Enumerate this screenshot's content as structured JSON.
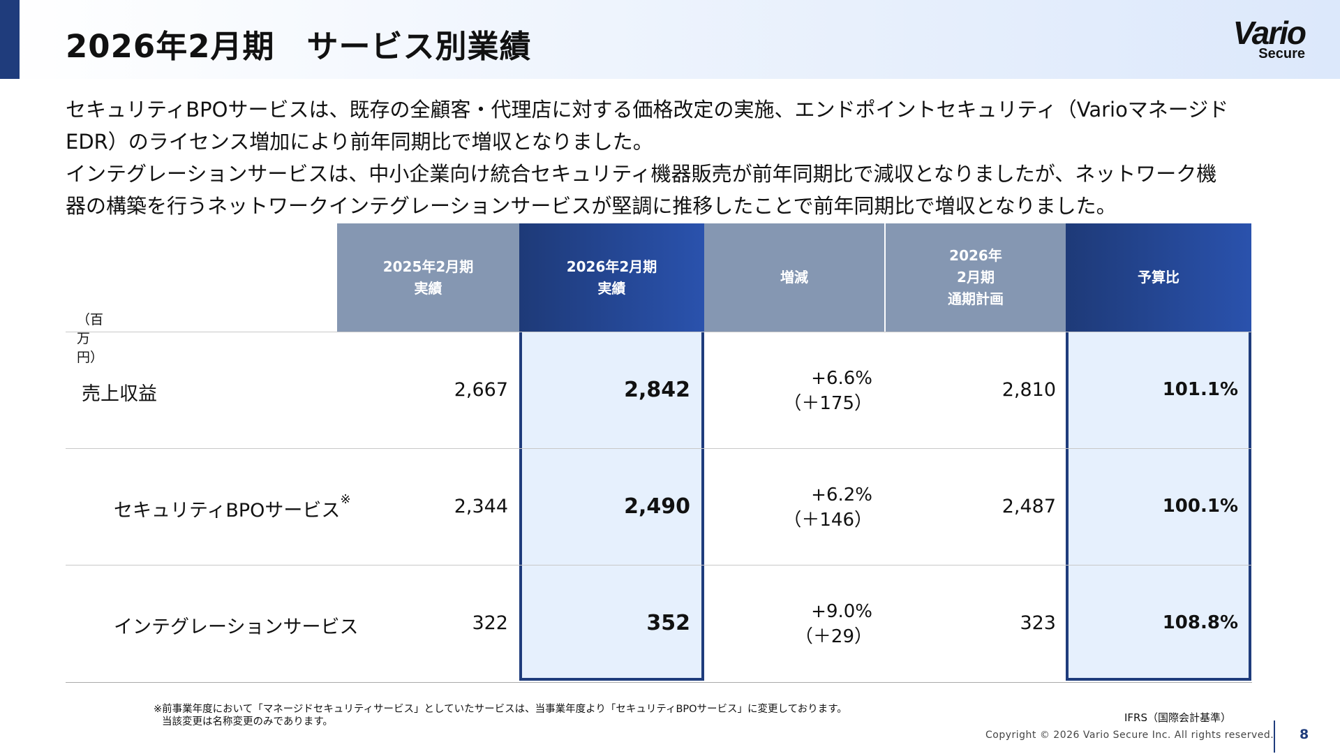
{
  "header": {
    "title": "2026年2月期　サービス別業績",
    "logo_main": "Vario",
    "logo_sub": "Secure"
  },
  "description": [
    "セキュリティBPOサービスは、既存の全顧客・代理店に対する価格改定の実施、エンドポイントセキュリティ（Varioマネージド",
    "EDR）のライセンス増加により前年同期比で増収となりました。",
    "インテグレーションサービスは、中小企業向け統合セキュリティ機器販売が前年同期比で減収となりましたが、ネットワーク機",
    "器の構築を行うネットワークインテグレーションサービスが堅調に推移したことで前年同期比で増収となりました。"
  ],
  "table": {
    "unit_label": "（百万円）",
    "headers": [
      "2025年2月期\n実績",
      "2026年2月期\n実績",
      "増減",
      "2026年\n2月期\n通期計画",
      "予算比"
    ],
    "rows": [
      {
        "label": "売上収益",
        "note_mark": "",
        "prev": "2,667",
        "current": "2,842",
        "change_pct": "+6.6%",
        "change_abs": "（＋175）",
        "plan": "2,810",
        "ratio": "101.1%"
      },
      {
        "label": "セキュリティBPOサービス",
        "note_mark": "※",
        "prev": "2,344",
        "current": "2,490",
        "change_pct": "+6.2%",
        "change_abs": "（＋146）",
        "plan": "2,487",
        "ratio": "100.1%"
      },
      {
        "label": "インテグレーションサービス",
        "note_mark": "",
        "prev": "322",
        "current": "352",
        "change_pct": "+9.0%",
        "change_abs": "（＋29）",
        "plan": "323",
        "ratio": "108.8%"
      }
    ]
  },
  "footer": {
    "footnote_line1": "※前事業年度において「マネージドセキュリティサービス」としていたサービスは、当事業年度より「セキュリティBPOサービス」に変更しております。",
    "footnote_line2": "当該変更は名称変更のみであります。",
    "ifrs": "IFRS（国際会計基準）",
    "copyright": "Copyright © 2026 Vario Secure Inc. All rights reserved.",
    "page_number": "8"
  },
  "colors": {
    "navy": "#1f3c7c",
    "header_gray": "#8597b2",
    "highlight_bg": "#e6f0fd"
  }
}
